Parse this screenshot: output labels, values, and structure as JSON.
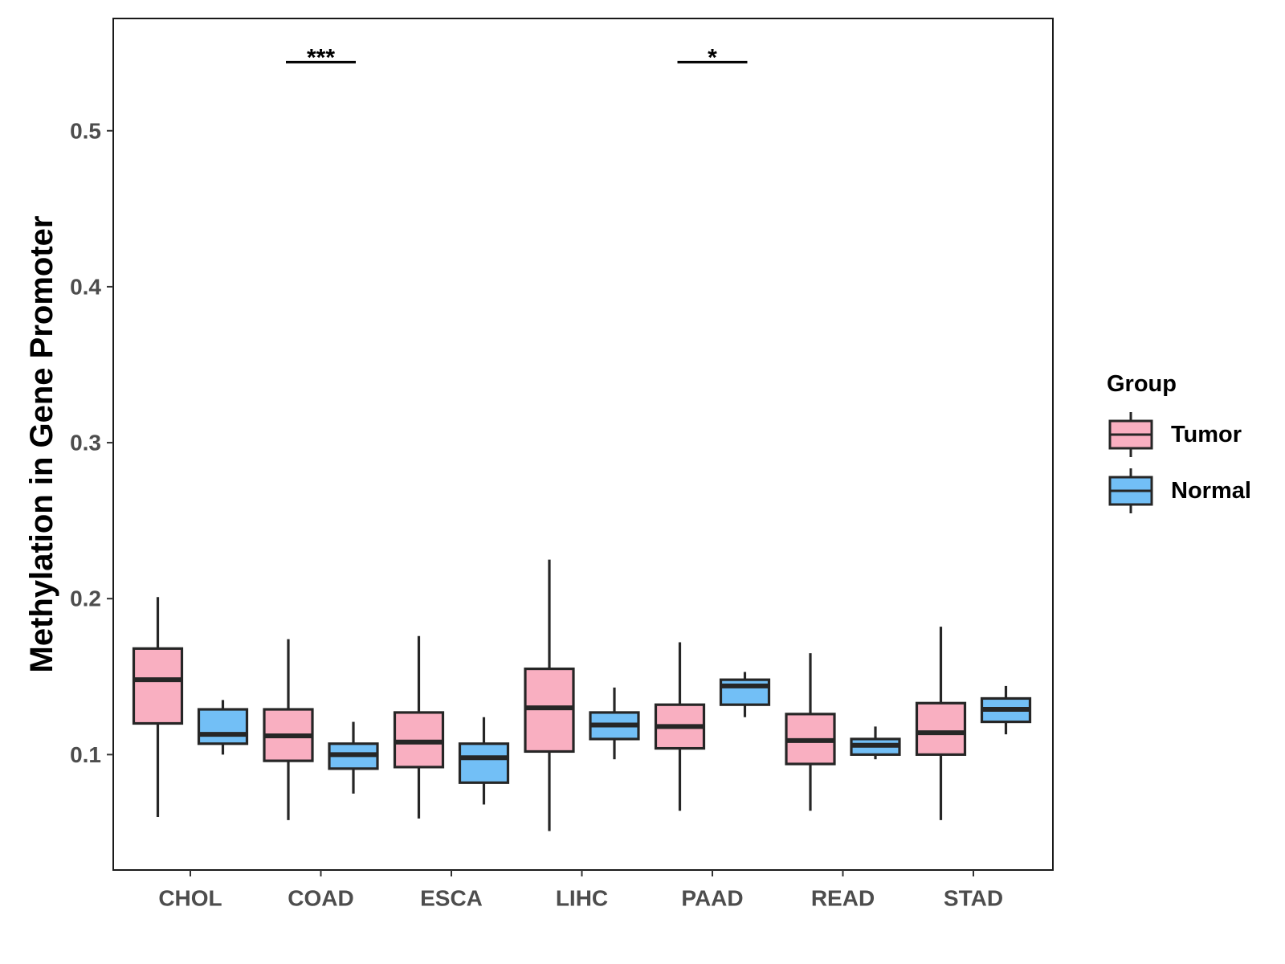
{
  "chart_data": {
    "type": "boxplot",
    "title": "",
    "xlabel": "",
    "ylabel": "Methylation in Gene Promoter",
    "ylim": [
      0.026,
      0.572
    ],
    "yticks": [
      0.1,
      0.2,
      0.3,
      0.4,
      0.5
    ],
    "ytick_labels": [
      "0.1",
      "0.2",
      "0.3",
      "0.4",
      "0.5"
    ],
    "grid": false,
    "legend": {
      "title": "Group",
      "position": "right",
      "entries": [
        {
          "name": "Tumor",
          "color": "#f9afc1"
        },
        {
          "name": "Normal",
          "color": "#72bff6"
        }
      ]
    },
    "categories": [
      "CHOL",
      "COAD",
      "ESCA",
      "LIHC",
      "PAAD",
      "READ",
      "STAD"
    ],
    "series": [
      {
        "name": "Tumor",
        "color": "#f9afc1",
        "boxes": [
          {
            "whisker_low": 0.06,
            "q1": 0.12,
            "median": 0.148,
            "q3": 0.168,
            "whisker_high": 0.201
          },
          {
            "whisker_low": 0.058,
            "q1": 0.096,
            "median": 0.112,
            "q3": 0.129,
            "whisker_high": 0.174
          },
          {
            "whisker_low": 0.059,
            "q1": 0.092,
            "median": 0.108,
            "q3": 0.127,
            "whisker_high": 0.176
          },
          {
            "whisker_low": 0.051,
            "q1": 0.102,
            "median": 0.13,
            "q3": 0.155,
            "whisker_high": 0.225
          },
          {
            "whisker_low": 0.064,
            "q1": 0.104,
            "median": 0.118,
            "q3": 0.132,
            "whisker_high": 0.172
          },
          {
            "whisker_low": 0.064,
            "q1": 0.094,
            "median": 0.109,
            "q3": 0.126,
            "whisker_high": 0.165
          },
          {
            "whisker_low": 0.058,
            "q1": 0.1,
            "median": 0.114,
            "q3": 0.133,
            "whisker_high": 0.182
          }
        ]
      },
      {
        "name": "Normal",
        "color": "#72bff6",
        "boxes": [
          {
            "whisker_low": 0.1,
            "q1": 0.107,
            "median": 0.113,
            "q3": 0.129,
            "whisker_high": 0.135
          },
          {
            "whisker_low": 0.075,
            "q1": 0.091,
            "median": 0.1,
            "q3": 0.107,
            "whisker_high": 0.121
          },
          {
            "whisker_low": 0.068,
            "q1": 0.082,
            "median": 0.098,
            "q3": 0.107,
            "whisker_high": 0.124
          },
          {
            "whisker_low": 0.097,
            "q1": 0.11,
            "median": 0.119,
            "q3": 0.127,
            "whisker_high": 0.143
          },
          {
            "whisker_low": 0.124,
            "q1": 0.132,
            "median": 0.144,
            "q3": 0.148,
            "whisker_high": 0.153
          },
          {
            "whisker_low": 0.097,
            "q1": 0.1,
            "median": 0.106,
            "q3": 0.11,
            "whisker_high": 0.118
          },
          {
            "whisker_low": 0.113,
            "q1": 0.121,
            "median": 0.129,
            "q3": 0.136,
            "whisker_high": 0.144
          }
        ]
      }
    ],
    "annotations": [
      {
        "category": "COAD",
        "label": "***",
        "y": 0.544
      },
      {
        "category": "PAAD",
        "label": "*",
        "y": 0.544
      }
    ]
  }
}
